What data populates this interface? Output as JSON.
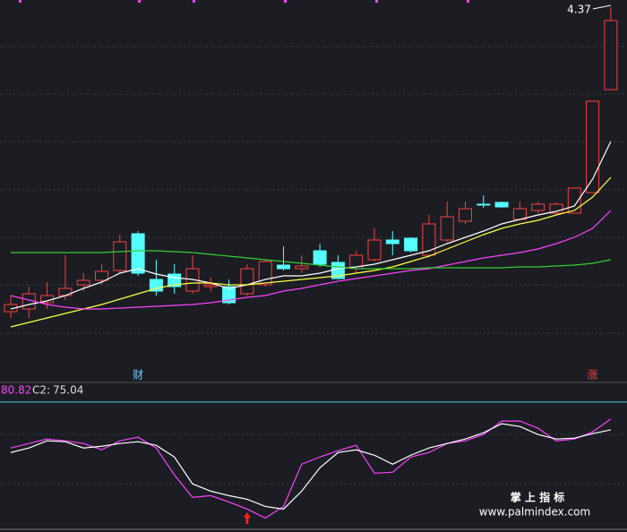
{
  "chart_data": [
    {
      "type": "candlestick",
      "categories": [
        null,
        null,
        null,
        null,
        null,
        null,
        null,
        null,
        null,
        null,
        null,
        null,
        null,
        null,
        null,
        null,
        null,
        null,
        null,
        null,
        null,
        null,
        null,
        null,
        null,
        null,
        null,
        null,
        null,
        null,
        null,
        null,
        null,
        null
      ],
      "ohlc": {
        "open": [
          3.69,
          3.696,
          3.71,
          3.726,
          3.75,
          3.76,
          3.782,
          3.864,
          3.762,
          3.774,
          3.736,
          3.746,
          3.746,
          3.73,
          3.75,
          3.794,
          3.786,
          3.826,
          3.8,
          3.786,
          3.806,
          3.85,
          3.854,
          3.816,
          3.85,
          3.892,
          3.93,
          3.934,
          3.896,
          3.916,
          3.91,
          3.91,
          3.956,
          4.186
        ],
        "close": [
          3.706,
          3.73,
          3.726,
          3.742,
          3.76,
          3.78,
          3.846,
          3.776,
          3.736,
          3.746,
          3.786,
          3.75,
          3.71,
          3.786,
          3.802,
          3.786,
          3.792,
          3.796,
          3.764,
          3.816,
          3.85,
          3.842,
          3.826,
          3.886,
          3.902,
          3.92,
          3.928,
          3.924,
          3.92,
          3.93,
          3.93,
          3.966,
          4.16,
          4.34
        ],
        "high": [
          3.726,
          3.746,
          3.756,
          3.816,
          3.776,
          3.796,
          3.862,
          3.87,
          3.806,
          3.796,
          3.816,
          3.766,
          3.762,
          3.796,
          3.806,
          3.836,
          3.816,
          3.842,
          3.816,
          3.826,
          3.876,
          3.87,
          3.856,
          3.906,
          3.936,
          3.936,
          3.95,
          3.936,
          3.936,
          3.936,
          3.934,
          3.966,
          4.16,
          4.37
        ],
        "low": [
          3.676,
          3.676,
          3.696,
          3.716,
          3.736,
          3.75,
          3.776,
          3.77,
          3.726,
          3.73,
          3.73,
          3.736,
          3.706,
          3.726,
          3.746,
          3.782,
          3.776,
          3.79,
          3.762,
          3.776,
          3.802,
          3.816,
          3.822,
          3.81,
          3.846,
          3.886,
          3.922,
          3.922,
          3.894,
          3.91,
          3.906,
          3.91,
          3.956,
          4.186
        ]
      },
      "up_color": "#ff3d3d",
      "down_color": "#54ffff",
      "series": [
        {
          "color": "#ffffff",
          "values": [
            3.696,
            3.706,
            3.714,
            3.726,
            3.742,
            3.756,
            3.776,
            3.786,
            3.774,
            3.766,
            3.762,
            3.754,
            3.742,
            3.75,
            3.762,
            3.77,
            3.77,
            3.776,
            3.786,
            3.79,
            3.796,
            3.806,
            3.816,
            3.826,
            3.842,
            3.856,
            3.87,
            3.886,
            3.896,
            3.906,
            3.914,
            3.926,
            3.986,
            4.07
          ]
        },
        {
          "color": "#ffff40",
          "values": [
            3.656,
            3.666,
            3.676,
            3.686,
            3.696,
            3.706,
            3.718,
            3.73,
            3.742,
            3.75,
            3.754,
            3.754,
            3.75,
            3.75,
            3.754,
            3.758,
            3.762,
            3.766,
            3.77,
            3.776,
            3.782,
            3.79,
            3.802,
            3.814,
            3.83,
            3.846,
            3.862,
            3.876,
            3.886,
            3.894,
            3.906,
            3.916,
            3.946,
            3.99
          ]
        },
        {
          "color": "#ff40ff",
          "values": [
            3.726,
            3.716,
            3.706,
            3.7,
            3.696,
            3.696,
            3.698,
            3.7,
            3.702,
            3.704,
            3.706,
            3.71,
            3.716,
            3.722,
            3.726,
            3.736,
            3.742,
            3.75,
            3.758,
            3.764,
            3.77,
            3.776,
            3.782,
            3.786,
            3.794,
            3.802,
            3.81,
            3.816,
            3.822,
            3.83,
            3.842,
            3.856,
            3.876,
            3.916
          ]
        },
        {
          "color": "#30d030",
          "values": [
            3.822,
            3.822,
            3.822,
            3.822,
            3.822,
            3.822,
            3.824,
            3.826,
            3.826,
            3.824,
            3.822,
            3.818,
            3.814,
            3.81,
            3.806,
            3.802,
            3.798,
            3.794,
            3.79,
            3.786,
            3.786,
            3.786,
            3.786,
            3.788,
            3.788,
            3.788,
            3.788,
            3.788,
            3.79,
            3.79,
            3.792,
            3.794,
            3.798,
            3.806
          ]
        }
      ],
      "ylim": [
        3.536,
        4.386
      ],
      "annotations": [
        {
          "text": "财",
          "x": 7
        },
        {
          "text": "涨",
          "x": 32
        }
      ]
    },
    {
      "type": "line",
      "series": [
        {
          "color": "#ff40ff",
          "values": [
            65.3,
            67.71,
            70.12,
            69.15,
            67.71,
            64.33,
            69.15,
            71.08,
            65.3,
            50.84,
            38.79,
            39.75,
            36.38,
            32.52,
            27.7,
            33.97,
            56.62,
            60.48,
            63.85,
            66.74,
            51.8,
            52.28,
            60.48,
            62.89,
            67.71,
            69.15,
            72.53,
            79.76,
            79.76,
            75.9,
            69.15,
            70.12,
            73.97,
            80.82
          ]
        },
        {
          "name": "C2:",
          "color": "#ffffff",
          "values": [
            62.89,
            65.3,
            69.15,
            68.67,
            65.3,
            66.26,
            67.71,
            68.67,
            66.74,
            60.48,
            46.02,
            42.16,
            39.75,
            37.82,
            33.97,
            32.52,
            42.16,
            54.69,
            62.89,
            64.33,
            61.44,
            56.62,
            61.44,
            65.3,
            67.71,
            70.12,
            73.49,
            78.31,
            76.86,
            72.53,
            70.12,
            70.6,
            73.01,
            75.04
          ]
        }
      ],
      "ylim": [
        20,
        100
      ],
      "hline": 90,
      "hline_color": "#40d0d0",
      "signals": [
        13
      ],
      "signal_color": "#ff2020"
    }
  ],
  "watermark": {
    "title": "掌 上 指 标",
    "url": "www.palmindex.com"
  }
}
